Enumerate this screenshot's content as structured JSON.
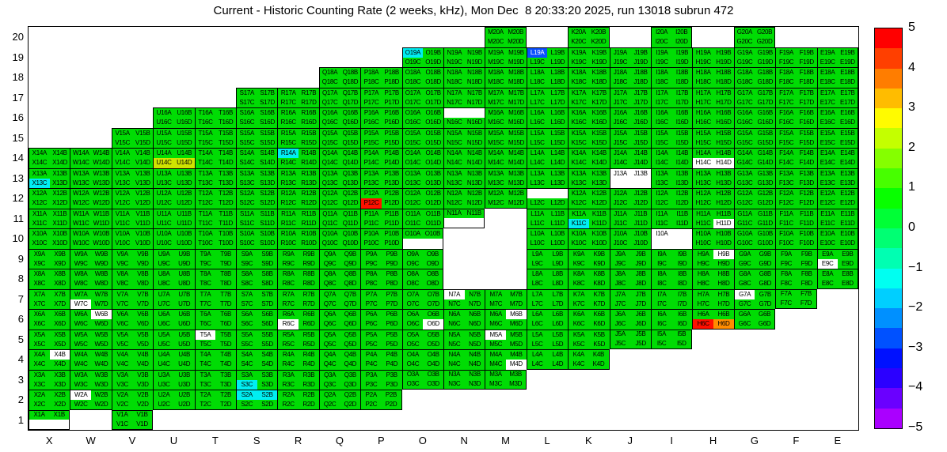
{
  "chart_data": {
    "type": "heatmap",
    "title": "Current - Historic Counting Rate (2 weeks, kHz), Mon Dec  8 20:33:20 2025, run 13018 subrun 472",
    "x_axis_labels": [
      "X",
      "W",
      "V",
      "U",
      "T",
      "S",
      "R",
      "Q",
      "P",
      "O",
      "N",
      "M",
      "L",
      "K",
      "J",
      "I",
      "H",
      "G",
      "F",
      "E"
    ],
    "y_axis_labels": [
      "20",
      "19",
      "18",
      "17",
      "16",
      "15",
      "14",
      "13",
      "12",
      "11",
      "10",
      "9",
      "8",
      "7",
      "6",
      "5",
      "4",
      "3",
      "2",
      "1"
    ],
    "cell_quadrant_suffixes": [
      "A",
      "B",
      "C",
      "D"
    ],
    "rows": [
      {
        "row": 20,
        "cols": [
          "M",
          "K",
          "I",
          "G"
        ]
      },
      {
        "row": 19,
        "cols": [
          "O",
          "N",
          "M",
          "L",
          "K",
          "J",
          "I",
          "H",
          "G",
          "F",
          "E"
        ]
      },
      {
        "row": 18,
        "cols": [
          "Q",
          "P",
          "O",
          "N",
          "M",
          "L",
          "K",
          "J",
          "I",
          "H",
          "G",
          "F",
          "E"
        ]
      },
      {
        "row": 17,
        "cols": [
          "S",
          "R",
          "Q",
          "P",
          "O",
          "N",
          "M",
          "L",
          "K",
          "J",
          "I",
          "H",
          "G",
          "F",
          "E"
        ]
      },
      {
        "row": 16,
        "cols": [
          "U",
          "T",
          "S",
          "R",
          "Q",
          "P",
          "O",
          "N",
          "M",
          "L",
          "K",
          "J",
          "I",
          "H",
          "G",
          "F",
          "E"
        ]
      },
      {
        "row": 15,
        "cols": [
          "V",
          "U",
          "T",
          "S",
          "R",
          "Q",
          "P",
          "O",
          "N",
          "M",
          "L",
          "K",
          "J",
          "I",
          "H",
          "G",
          "F",
          "E"
        ]
      },
      {
        "row": 14,
        "cols": [
          "X",
          "W",
          "V",
          "U",
          "T",
          "S",
          "R",
          "Q",
          "P",
          "O",
          "N",
          "M",
          "L",
          "K",
          "J",
          "I",
          "H",
          "G",
          "F",
          "E"
        ]
      },
      {
        "row": 13,
        "cols": [
          "X",
          "W",
          "V",
          "U",
          "T",
          "S",
          "R",
          "Q",
          "P",
          "O",
          "N",
          "M",
          "L",
          "K",
          "J",
          "I",
          "H",
          "G",
          "F",
          "E"
        ]
      },
      {
        "row": 12,
        "cols": [
          "X",
          "W",
          "V",
          "U",
          "T",
          "S",
          "R",
          "Q",
          "P",
          "O",
          "N",
          "M",
          "L",
          "K",
          "J",
          "I",
          "H",
          "G",
          "F",
          "E"
        ]
      },
      {
        "row": 11,
        "cols": [
          "X",
          "W",
          "V",
          "U",
          "T",
          "S",
          "R",
          "Q",
          "P",
          "O",
          "N",
          "L",
          "K",
          "J",
          "I",
          "H",
          "G",
          "F",
          "E"
        ]
      },
      {
        "row": 10,
        "cols": [
          "X",
          "W",
          "V",
          "U",
          "T",
          "S",
          "R",
          "Q",
          "P",
          "O",
          "L",
          "K",
          "J",
          "I",
          "H",
          "G",
          "F",
          "E"
        ]
      },
      {
        "row": 9,
        "cols": [
          "X",
          "W",
          "V",
          "U",
          "T",
          "S",
          "R",
          "Q",
          "P",
          "O",
          "L",
          "K",
          "J",
          "I",
          "H",
          "G",
          "F",
          "E"
        ]
      },
      {
        "row": 8,
        "cols": [
          "X",
          "W",
          "V",
          "U",
          "T",
          "S",
          "R",
          "Q",
          "P",
          "O",
          "L",
          "K",
          "J",
          "I",
          "H",
          "G",
          "F",
          "E"
        ]
      },
      {
        "row": 7,
        "cols": [
          "X",
          "W",
          "V",
          "U",
          "T",
          "S",
          "R",
          "Q",
          "P",
          "O",
          "N",
          "M",
          "L",
          "K",
          "J",
          "I",
          "H",
          "G",
          "F"
        ]
      },
      {
        "row": 6,
        "cols": [
          "X",
          "W",
          "V",
          "U",
          "T",
          "S",
          "R",
          "Q",
          "P",
          "O",
          "N",
          "M",
          "L",
          "K",
          "J",
          "I",
          "H",
          "G"
        ]
      },
      {
        "row": 5,
        "cols": [
          "X",
          "W",
          "V",
          "U",
          "T",
          "S",
          "R",
          "Q",
          "P",
          "O",
          "N",
          "M",
          "L",
          "K",
          "J",
          "I"
        ]
      },
      {
        "row": 4,
        "cols": [
          "X",
          "W",
          "V",
          "U",
          "T",
          "S",
          "R",
          "Q",
          "P",
          "O",
          "N",
          "M",
          "L",
          "K"
        ]
      },
      {
        "row": 3,
        "cols": [
          "X",
          "W",
          "V",
          "U",
          "T",
          "S",
          "R",
          "Q",
          "P",
          "O",
          "N",
          "M"
        ]
      },
      {
        "row": 2,
        "cols": [
          "X",
          "W",
          "V",
          "U",
          "T",
          "S",
          "R",
          "Q",
          "P"
        ]
      },
      {
        "row": 1,
        "cols": [
          "X",
          "V"
        ]
      }
    ],
    "blank_quadrants": [
      "N16A",
      "N16B",
      "J13C",
      "J13D",
      "L12A",
      "L12B",
      "N11C",
      "N11D",
      "O10C",
      "O10D",
      "I10B",
      "I10C",
      "I10D",
      "X1C",
      "X1D"
    ],
    "highlighted_quadrants": {
      "O19A": "cyan",
      "L19A": "blue",
      "R14A": "cyan",
      "U14C": "yellow",
      "U14D": "yellow",
      "H14C": "white",
      "H14D": "white",
      "X13C": "cyan",
      "J13A": "white",
      "J13B": "white",
      "P12C": "red",
      "K11C": "cyan",
      "H11D": "white",
      "I10A": "white",
      "H9B": "white",
      "E9C": "white",
      "W7C": "white",
      "N7A": "white",
      "G7A": "white",
      "W6B": "white",
      "R6C": "white",
      "O6D": "white",
      "M6B": "white",
      "H6C": "red",
      "H6D": "orange",
      "M5A": "white",
      "T5A": "white",
      "X4B": "white",
      "M4D": "white",
      "S3C": "cyan",
      "W2A": "white",
      "S2A": "cyan",
      "S2B": "cyan"
    },
    "value_colors": {
      "default": "#00dc04",
      "cyan": "#00eef2",
      "blue": "#0a50ff",
      "red": "#ff0f00",
      "orange": "#ff8c00",
      "yellow": "#cfe400",
      "white": "#ffffff"
    },
    "colorbar": {
      "tick_labels": [
        "5",
        "4",
        "3",
        "2",
        "1",
        "0",
        "−1",
        "−2",
        "−3",
        "−4",
        "−5"
      ],
      "segments": [
        "#ff0000",
        "#ff3f00",
        "#ff7d00",
        "#ffbc00",
        "#fffb00",
        "#c4ff00",
        "#85ff00",
        "#47ff00",
        "#08ff00",
        "#00ff36",
        "#00ff73",
        "#00ffb2",
        "#00fff1",
        "#00cfff",
        "#0090ff",
        "#0051ff",
        "#0011ff",
        "#2b00ff",
        "#6a00ff",
        "#aa00ff"
      ]
    },
    "value_range": [
      -5,
      5
    ]
  }
}
